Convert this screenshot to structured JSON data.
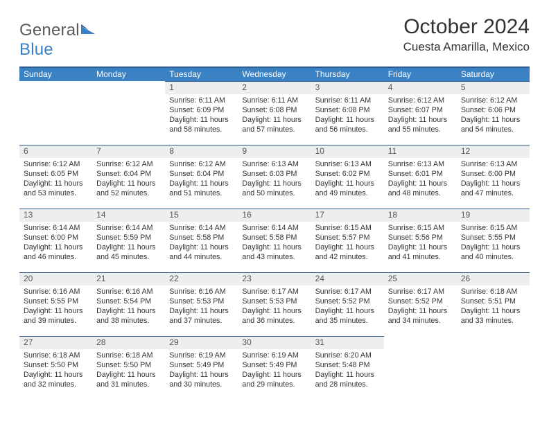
{
  "brand": {
    "part1": "General",
    "part2": "Blue"
  },
  "title": "October 2024",
  "location": "Cuesta Amarilla, Mexico",
  "colors": {
    "header_bg": "#3a82c4",
    "header_border": "#2d5a8a",
    "daynum_bg": "#eceef0",
    "text": "#333333",
    "brand_gray": "#5a5a5a",
    "brand_blue": "#3a7fc4"
  },
  "weekdays": [
    "Sunday",
    "Monday",
    "Tuesday",
    "Wednesday",
    "Thursday",
    "Friday",
    "Saturday"
  ],
  "first_weekday_index": 2,
  "days": [
    {
      "n": 1,
      "sunrise": "6:11 AM",
      "sunset": "6:09 PM",
      "daylight": "11 hours and 58 minutes."
    },
    {
      "n": 2,
      "sunrise": "6:11 AM",
      "sunset": "6:08 PM",
      "daylight": "11 hours and 57 minutes."
    },
    {
      "n": 3,
      "sunrise": "6:11 AM",
      "sunset": "6:08 PM",
      "daylight": "11 hours and 56 minutes."
    },
    {
      "n": 4,
      "sunrise": "6:12 AM",
      "sunset": "6:07 PM",
      "daylight": "11 hours and 55 minutes."
    },
    {
      "n": 5,
      "sunrise": "6:12 AM",
      "sunset": "6:06 PM",
      "daylight": "11 hours and 54 minutes."
    },
    {
      "n": 6,
      "sunrise": "6:12 AM",
      "sunset": "6:05 PM",
      "daylight": "11 hours and 53 minutes."
    },
    {
      "n": 7,
      "sunrise": "6:12 AM",
      "sunset": "6:04 PM",
      "daylight": "11 hours and 52 minutes."
    },
    {
      "n": 8,
      "sunrise": "6:12 AM",
      "sunset": "6:04 PM",
      "daylight": "11 hours and 51 minutes."
    },
    {
      "n": 9,
      "sunrise": "6:13 AM",
      "sunset": "6:03 PM",
      "daylight": "11 hours and 50 minutes."
    },
    {
      "n": 10,
      "sunrise": "6:13 AM",
      "sunset": "6:02 PM",
      "daylight": "11 hours and 49 minutes."
    },
    {
      "n": 11,
      "sunrise": "6:13 AM",
      "sunset": "6:01 PM",
      "daylight": "11 hours and 48 minutes."
    },
    {
      "n": 12,
      "sunrise": "6:13 AM",
      "sunset": "6:00 PM",
      "daylight": "11 hours and 47 minutes."
    },
    {
      "n": 13,
      "sunrise": "6:14 AM",
      "sunset": "6:00 PM",
      "daylight": "11 hours and 46 minutes."
    },
    {
      "n": 14,
      "sunrise": "6:14 AM",
      "sunset": "5:59 PM",
      "daylight": "11 hours and 45 minutes."
    },
    {
      "n": 15,
      "sunrise": "6:14 AM",
      "sunset": "5:58 PM",
      "daylight": "11 hours and 44 minutes."
    },
    {
      "n": 16,
      "sunrise": "6:14 AM",
      "sunset": "5:58 PM",
      "daylight": "11 hours and 43 minutes."
    },
    {
      "n": 17,
      "sunrise": "6:15 AM",
      "sunset": "5:57 PM",
      "daylight": "11 hours and 42 minutes."
    },
    {
      "n": 18,
      "sunrise": "6:15 AM",
      "sunset": "5:56 PM",
      "daylight": "11 hours and 41 minutes."
    },
    {
      "n": 19,
      "sunrise": "6:15 AM",
      "sunset": "5:55 PM",
      "daylight": "11 hours and 40 minutes."
    },
    {
      "n": 20,
      "sunrise": "6:16 AM",
      "sunset": "5:55 PM",
      "daylight": "11 hours and 39 minutes."
    },
    {
      "n": 21,
      "sunrise": "6:16 AM",
      "sunset": "5:54 PM",
      "daylight": "11 hours and 38 minutes."
    },
    {
      "n": 22,
      "sunrise": "6:16 AM",
      "sunset": "5:53 PM",
      "daylight": "11 hours and 37 minutes."
    },
    {
      "n": 23,
      "sunrise": "6:17 AM",
      "sunset": "5:53 PM",
      "daylight": "11 hours and 36 minutes."
    },
    {
      "n": 24,
      "sunrise": "6:17 AM",
      "sunset": "5:52 PM",
      "daylight": "11 hours and 35 minutes."
    },
    {
      "n": 25,
      "sunrise": "6:17 AM",
      "sunset": "5:52 PM",
      "daylight": "11 hours and 34 minutes."
    },
    {
      "n": 26,
      "sunrise": "6:18 AM",
      "sunset": "5:51 PM",
      "daylight": "11 hours and 33 minutes."
    },
    {
      "n": 27,
      "sunrise": "6:18 AM",
      "sunset": "5:50 PM",
      "daylight": "11 hours and 32 minutes."
    },
    {
      "n": 28,
      "sunrise": "6:18 AM",
      "sunset": "5:50 PM",
      "daylight": "11 hours and 31 minutes."
    },
    {
      "n": 29,
      "sunrise": "6:19 AM",
      "sunset": "5:49 PM",
      "daylight": "11 hours and 30 minutes."
    },
    {
      "n": 30,
      "sunrise": "6:19 AM",
      "sunset": "5:49 PM",
      "daylight": "11 hours and 29 minutes."
    },
    {
      "n": 31,
      "sunrise": "6:20 AM",
      "sunset": "5:48 PM",
      "daylight": "11 hours and 28 minutes."
    }
  ],
  "labels": {
    "sunrise": "Sunrise: ",
    "sunset": "Sunset: ",
    "daylight": "Daylight: "
  }
}
